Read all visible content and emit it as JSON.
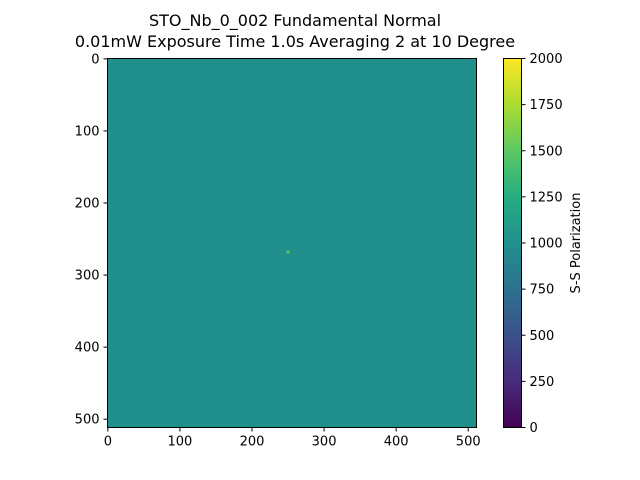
{
  "chart_data": {
    "type": "heatmap",
    "title_line1": "STO_Nb_0_002 Fundamental Normal",
    "title_line2": "0.01mW Exposure Time 1.0s Averaging 2 at 10 Degree",
    "xlim": [
      0,
      511
    ],
    "ylim": [
      511,
      0
    ],
    "xticks": [
      0,
      100,
      200,
      300,
      400,
      500
    ],
    "yticks": [
      0,
      100,
      200,
      300,
      400,
      500
    ],
    "background_value": 1030,
    "hotspot": {
      "x": 250,
      "y": 268,
      "value": 1550
    },
    "colorbar": {
      "label": "S-S Polarization",
      "range": [
        0,
        2000
      ],
      "ticks": [
        0,
        250,
        500,
        750,
        1000,
        1250,
        1500,
        1750,
        2000
      ],
      "colormap": "viridis"
    }
  }
}
